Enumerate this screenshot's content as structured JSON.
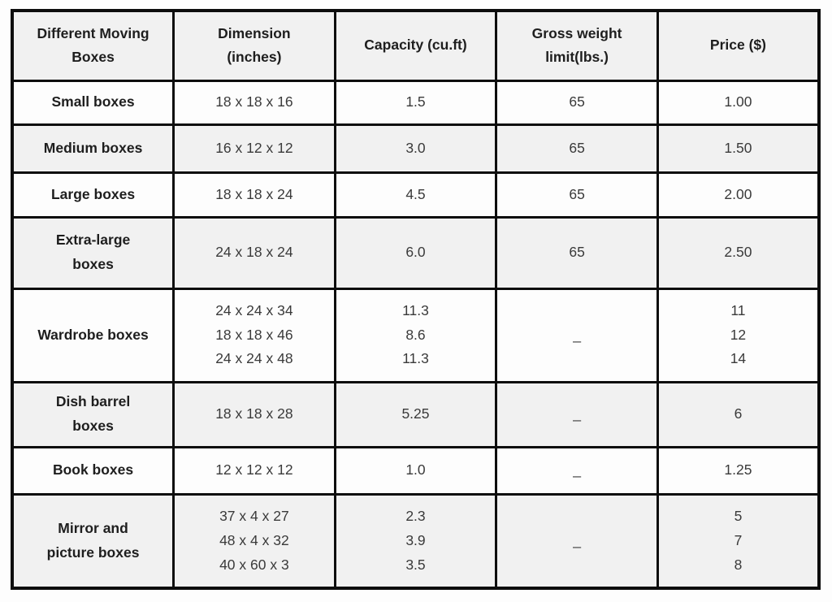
{
  "chart_data": {
    "type": "table",
    "title": "",
    "grid": true,
    "columns": [
      {
        "id": "name",
        "label": "Different Moving\nBoxes"
      },
      {
        "id": "dimension",
        "label": "Dimension\n(inches)"
      },
      {
        "id": "capacity",
        "label": "Capacity (cu.ft)"
      },
      {
        "id": "weight",
        "label": "Gross weight\nlimit(lbs.)"
      },
      {
        "id": "price",
        "label": "Price ($)"
      }
    ],
    "rows": [
      {
        "name": "Small boxes",
        "dimension": "18 x 18 x 16",
        "capacity": "1.5",
        "weight": "65",
        "price": "1.00"
      },
      {
        "name": "Medium boxes",
        "dimension": "16 x 12 x 12",
        "capacity": "3.0",
        "weight": "65",
        "price": "1.50"
      },
      {
        "name": "Large boxes",
        "dimension": "18 x 18 x 24",
        "capacity": "4.5",
        "weight": "65",
        "price": "2.00"
      },
      {
        "name": "Extra-large\nboxes",
        "dimension": "24 x 18 x 24",
        "capacity": "6.0",
        "weight": "65",
        "price": "2.50"
      },
      {
        "name": "Wardrobe boxes",
        "dimension": "24 x 24 x 34\n18 x 18 x 46\n24 x 24 x 48",
        "capacity": "11.3\n8.6\n11.3",
        "weight": "_",
        "price": "11\n12\n14"
      },
      {
        "name": "Dish barrel\nboxes",
        "dimension": "18 x 18 x 28",
        "capacity": "5.25",
        "weight": "_",
        "price": "6"
      },
      {
        "name": "Book boxes",
        "dimension": "12 x 12 x 12",
        "capacity": "1.0",
        "weight": "_",
        "price": "1.25"
      },
      {
        "name": "Mirror and\npicture boxes",
        "dimension": "37 x 4 x 27\n48 x 4 x 32\n40 x 60 x 3",
        "capacity": "2.3\n3.9\n3.5",
        "weight": "_",
        "price": "5\n7\n8"
      }
    ],
    "colors": {
      "row_shaded_bg": "#f1f1f1",
      "row_plain_bg": "#fdfdfd",
      "border": "#0d0d0d",
      "header_text": "#1e1e1e",
      "body_text": "#3a3a3a"
    }
  }
}
